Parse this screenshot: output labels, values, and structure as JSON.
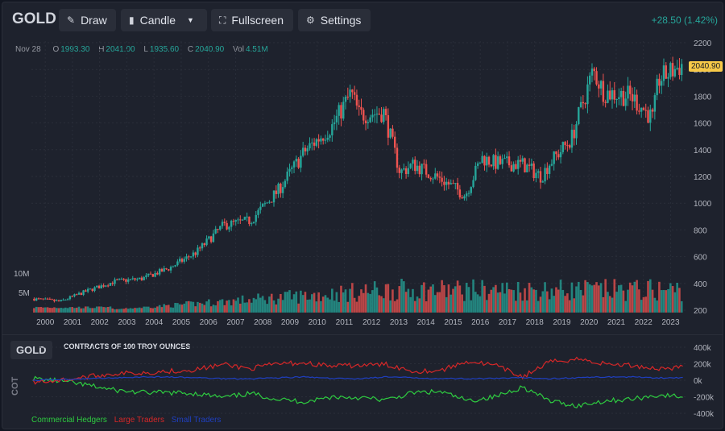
{
  "toolbar": {
    "symbol": "GOLD",
    "draw_label": "Draw",
    "candle_label": "Candle",
    "fullscreen_label": "Fullscreen",
    "settings_label": "Settings",
    "change": "+28.50 (1.42%)"
  },
  "legend_ohlc": {
    "date": "Nov 28",
    "o_label": "O",
    "o": "1993.30",
    "h_label": "H",
    "h": "2041.00",
    "l_label": "L",
    "l": "1935.60",
    "c_label": "C",
    "c": "2040.90",
    "vol_label": "Vol",
    "vol": "4.51M"
  },
  "last_price": "2040.90",
  "cot": {
    "symbol": "GOLD",
    "title": "CONTRACTS OF 100 TROY OUNCES",
    "side_label": "COT",
    "legend": [
      "Commercial Hedgers",
      "Large Traders",
      "Small Traders"
    ]
  },
  "colors": {
    "up": "#26a69a",
    "down": "#ef5350",
    "commercial": "#2ecc40",
    "large": "#d62728",
    "small": "#1f3fbf",
    "badge": "#f7c948"
  },
  "chart_data": [
    {
      "type": "candlestick",
      "title": "GOLD",
      "x_ticks": [
        "2000",
        "2001",
        "2002",
        "2003",
        "2004",
        "2005",
        "2006",
        "2007",
        "2008",
        "2009",
        "2010",
        "2011",
        "2012",
        "2013",
        "2014",
        "2015",
        "2016",
        "2017",
        "2018",
        "2019",
        "2020",
        "2021",
        "2022",
        "2023"
      ],
      "price_ticks": [
        "2200",
        "2000",
        "1800",
        "1600",
        "1400",
        "1200",
        "1000",
        "800",
        "600",
        "400",
        "200"
      ],
      "ylim": [
        200,
        2200
      ],
      "volume_ticks": [
        "10M",
        "5M"
      ],
      "close_by_year_approx": {
        "x": [
          2000,
          2001,
          2002,
          2003,
          2004,
          2005,
          2006,
          2007,
          2008,
          2009,
          2010,
          2011,
          2011.7,
          2012,
          2012.9,
          2013.5,
          2014,
          2015,
          2015.9,
          2016.5,
          2017,
          2018,
          2018.7,
          2019,
          2019.8,
          2020.6,
          2021,
          2022,
          2022.8,
          2023,
          2023.9
        ],
        "y": [
          285,
          265,
          345,
          415,
          435,
          513,
          632,
          834,
          870,
          1090,
          1390,
          1575,
          1825,
          1660,
          1680,
          1230,
          1290,
          1180,
          1060,
          1340,
          1300,
          1290,
          1200,
          1300,
          1480,
          1990,
          1830,
          1800,
          1630,
          1920,
          2040
        ]
      }
    },
    {
      "type": "line",
      "title": "CONTRACTS OF 100 TROY OUNCES",
      "ylabel": "COT",
      "y_ticks": [
        "400k",
        "200k",
        "0k",
        "-200k",
        "-400k"
      ],
      "ylim": [
        -400000,
        400000
      ],
      "series": [
        {
          "name": "Commercial Hedgers",
          "x": [
            2000,
            2001,
            2002,
            2003,
            2004,
            2005,
            2006,
            2007,
            2008,
            2009,
            2010,
            2011,
            2012,
            2013,
            2014,
            2015,
            2016,
            2017,
            2018,
            2019,
            2020,
            2021,
            2022,
            2023,
            2023.9
          ],
          "y": [
            20000,
            -10000,
            -60000,
            -120000,
            -150000,
            -150000,
            -160000,
            -210000,
            -160000,
            -230000,
            -260000,
            -200000,
            -210000,
            -240000,
            -150000,
            -140000,
            -250000,
            -200000,
            -80000,
            -250000,
            -310000,
            -250000,
            -230000,
            -180000,
            -200000
          ]
        },
        {
          "name": "Large Traders",
          "x": [
            2000,
            2001,
            2002,
            2003,
            2004,
            2005,
            2006,
            2007,
            2008,
            2009,
            2010,
            2011,
            2012,
            2013,
            2014,
            2015,
            2016,
            2017,
            2018,
            2019,
            2020,
            2021,
            2022,
            2023,
            2023.9
          ],
          "y": [
            -20000,
            0,
            40000,
            80000,
            90000,
            110000,
            130000,
            190000,
            140000,
            200000,
            210000,
            170000,
            180000,
            190000,
            110000,
            120000,
            230000,
            180000,
            40000,
            220000,
            260000,
            200000,
            180000,
            140000,
            160000
          ]
        },
        {
          "name": "Small Traders",
          "x": [
            2000,
            2001,
            2002,
            2003,
            2004,
            2005,
            2006,
            2007,
            2008,
            2009,
            2010,
            2011,
            2012,
            2013,
            2014,
            2015,
            2016,
            2017,
            2018,
            2019,
            2020,
            2021,
            2022,
            2023,
            2023.9
          ],
          "y": [
            0,
            10000,
            20000,
            30000,
            40000,
            40000,
            30000,
            20000,
            20000,
            30000,
            40000,
            20000,
            20000,
            40000,
            30000,
            20000,
            20000,
            20000,
            30000,
            20000,
            30000,
            40000,
            40000,
            30000,
            30000
          ]
        }
      ]
    }
  ]
}
